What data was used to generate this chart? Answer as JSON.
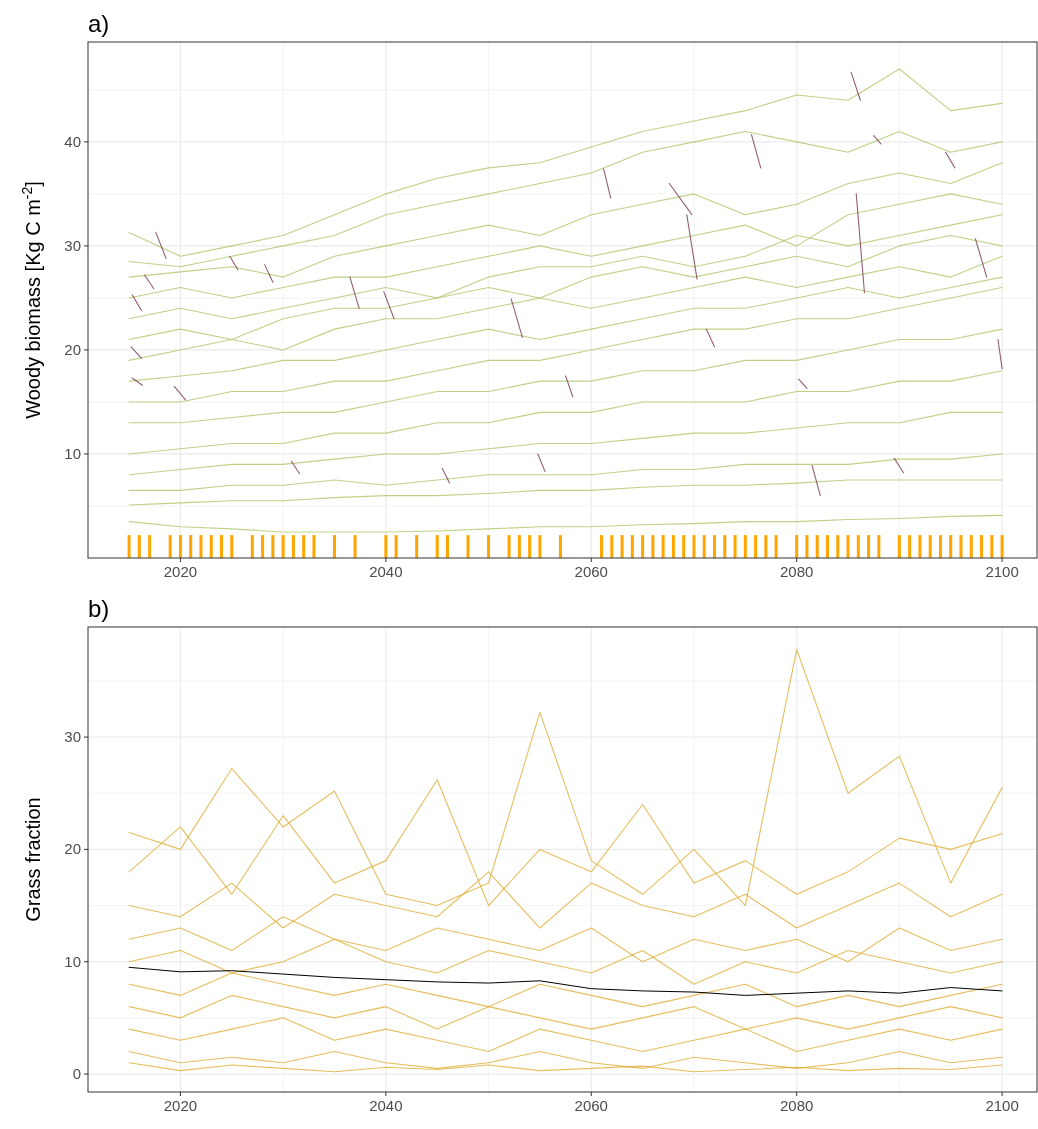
{
  "chart_data": [
    {
      "type": "line",
      "title": "a)",
      "ylabel": "Woody  biomass  [Kg C m$^{-2}$]",
      "grid": true,
      "xlim": [
        2011,
        2103.4
      ],
      "ylim": [
        0,
        49.6
      ],
      "xticks": [
        2020,
        {
          "value": 2030,
          "label": null
        },
        2040,
        {
          "value": 2050,
          "label": null
        },
        2060,
        {
          "value": 2070,
          "label": null
        },
        2080,
        {
          "value": 2090,
          "label": null
        },
        2100
      ],
      "yticks": [
        {
          "value": 5,
          "label": null
        },
        10,
        {
          "value": 15,
          "label": null
        },
        20,
        {
          "value": 25,
          "label": null
        },
        30,
        {
          "value": 35,
          "label": null
        },
        40,
        {
          "value": 45,
          "label": null
        }
      ],
      "x": [
        2015,
        2020,
        2025,
        2030,
        2035,
        2040,
        2045,
        2050,
        2055,
        2060,
        2065,
        2070,
        2075,
        2080,
        2085,
        2090,
        2095,
        2100
      ],
      "series": [
        {
          "color": "#a9c15f",
          "values": [
            31.3,
            29,
            30,
            31,
            33,
            35,
            36.5,
            37.5,
            38,
            39.5,
            41,
            42,
            43,
            44.5,
            44,
            47,
            43,
            43.7
          ]
        },
        {
          "color": "#a9c15f",
          "values": [
            28.5,
            28,
            29,
            30,
            31,
            33,
            34,
            35,
            36,
            37,
            39,
            40,
            41,
            40,
            39,
            41,
            39,
            40
          ]
        },
        {
          "color": "#a9c15f",
          "values": [
            27,
            27.5,
            28,
            27,
            29,
            30,
            31,
            32,
            31,
            33,
            34,
            35,
            33,
            34,
            36,
            37,
            36,
            38
          ]
        },
        {
          "color": "#a9c15f",
          "values": [
            25,
            26,
            25,
            26,
            27,
            27,
            28,
            29,
            30,
            29,
            30,
            31,
            32,
            30,
            33,
            34,
            35,
            34
          ]
        },
        {
          "color": "#a9c15f",
          "values": [
            23,
            24,
            23,
            24,
            25,
            26,
            25,
            27,
            28,
            28,
            29,
            28,
            29,
            31,
            30,
            31,
            32,
            33
          ]
        },
        {
          "color": "#a9c15f",
          "values": [
            21,
            22,
            21,
            23,
            24,
            24,
            25,
            26,
            25,
            27,
            28,
            27,
            28,
            29,
            28,
            30,
            31,
            30
          ]
        },
        {
          "color": "#a9c15f",
          "values": [
            19,
            20,
            21,
            20,
            22,
            23,
            23,
            24,
            25,
            24,
            25,
            26,
            27,
            26,
            27,
            28,
            27,
            29
          ]
        },
        {
          "color": "#a9c15f",
          "values": [
            17,
            17.5,
            18,
            19,
            19,
            20,
            21,
            22,
            21,
            22,
            23,
            24,
            24,
            25,
            26,
            25,
            26,
            27
          ]
        },
        {
          "color": "#a9c15f",
          "values": [
            15,
            15,
            16,
            16,
            17,
            17,
            18,
            19,
            19,
            20,
            21,
            22,
            22,
            23,
            23,
            24,
            25,
            26
          ]
        },
        {
          "color": "#a9c15f",
          "values": [
            13,
            13,
            13.5,
            14,
            14,
            15,
            16,
            16,
            17,
            17,
            18,
            18,
            19,
            19,
            20,
            21,
            21,
            22
          ]
        },
        {
          "color": "#a9c15f",
          "values": [
            10,
            10.5,
            11,
            11,
            12,
            12,
            13,
            13,
            14,
            14,
            15,
            15,
            15,
            16,
            16,
            17,
            17,
            18
          ]
        },
        {
          "color": "#a9c15f",
          "values": [
            8,
            8.5,
            9,
            9,
            9.5,
            10,
            10,
            10.5,
            11,
            11,
            11.5,
            12,
            12,
            12.5,
            13,
            13,
            14,
            14
          ]
        },
        {
          "color": "#a9c15f",
          "values": [
            6.5,
            6.5,
            7,
            7,
            7.5,
            7,
            7.5,
            8,
            8,
            8,
            8.5,
            8.5,
            9,
            9,
            9,
            9.5,
            9.5,
            10
          ]
        },
        {
          "color": "#a9c15f",
          "values": [
            5.1,
            5.3,
            5.5,
            5.5,
            5.8,
            6,
            6,
            6.2,
            6.5,
            6.5,
            6.8,
            7,
            7,
            7.2,
            7.5,
            7.5,
            7.5,
            7.5
          ]
        },
        {
          "color": "#a9c15f",
          "values": [
            3.5,
            3,
            2.8,
            2.5,
            2.5,
            2.5,
            2.6,
            2.8,
            3,
            3,
            3.2,
            3.3,
            3.5,
            3.5,
            3.7,
            3.8,
            4,
            4.1
          ]
        },
        {
          "color": "#6e2a45",
          "x": [
            2017.6,
            2018.6
          ],
          "values": [
            31.3,
            28.8
          ]
        },
        {
          "color": "#6e2a45",
          "x": [
            2015.3,
            2016.2
          ],
          "values": [
            25.3,
            23.8
          ]
        },
        {
          "color": "#6e2a45",
          "x": [
            2015.2,
            2016.2
          ],
          "values": [
            20.3,
            19.2
          ]
        },
        {
          "color": "#6e2a45",
          "x": [
            2015.3,
            2016.3
          ],
          "values": [
            17.3,
            16.6
          ]
        },
        {
          "color": "#6e2a45",
          "x": [
            2016.5,
            2017.4
          ],
          "values": [
            27.2,
            25.9
          ]
        },
        {
          "color": "#6e2a45",
          "x": [
            2019.4,
            2020.5
          ],
          "values": [
            16.5,
            15.2
          ]
        },
        {
          "color": "#6e2a45",
          "x": [
            2024.8,
            2025.6
          ],
          "values": [
            29,
            27.7
          ]
        },
        {
          "color": "#6e2a45",
          "x": [
            2028.2,
            2029
          ],
          "values": [
            28.2,
            26.5
          ]
        },
        {
          "color": "#6e2a45",
          "x": [
            2030.8,
            2031.6
          ],
          "values": [
            9.3,
            8.1
          ]
        },
        {
          "color": "#6e2a45",
          "x": [
            2036.5,
            2037.4
          ],
          "values": [
            27,
            24
          ]
        },
        {
          "color": "#6e2a45",
          "x": [
            2039.8,
            2040.8
          ],
          "values": [
            25.6,
            23
          ]
        },
        {
          "color": "#6e2a45",
          "x": [
            2045.5,
            2046.2
          ],
          "values": [
            8.6,
            7.2
          ]
        },
        {
          "color": "#6e2a45",
          "x": [
            2052.2,
            2053.3
          ],
          "values": [
            24.9,
            21.2
          ]
        },
        {
          "color": "#6e2a45",
          "x": [
            2054.8,
            2055.5
          ],
          "values": [
            10,
            8.3
          ]
        },
        {
          "color": "#6e2a45",
          "x": [
            2057.5,
            2058.2
          ],
          "values": [
            17.5,
            15.5
          ]
        },
        {
          "color": "#6e2a45",
          "x": [
            2061.2,
            2061.9
          ],
          "values": [
            37.4,
            34.6
          ]
        },
        {
          "color": "#6e2a45",
          "x": [
            2067.6,
            2069.8
          ],
          "values": [
            36,
            33
          ]
        },
        {
          "color": "#6e2a45",
          "x": [
            2069.3,
            2070.3
          ],
          "values": [
            33,
            26.8
          ]
        },
        {
          "color": "#6e2a45",
          "x": [
            2071.2,
            2072
          ],
          "values": [
            22,
            20.3
          ]
        },
        {
          "color": "#6e2a45",
          "x": [
            2075.6,
            2076.5
          ],
          "values": [
            40.7,
            37.5
          ]
        },
        {
          "color": "#6e2a45",
          "x": [
            2080.2,
            2081
          ],
          "values": [
            17.2,
            16.3
          ]
        },
        {
          "color": "#6e2a45",
          "x": [
            2081.5,
            2082.3
          ],
          "values": [
            8.9,
            6
          ]
        },
        {
          "color": "#6e2a45",
          "x": [
            2085.3,
            2086.2
          ],
          "values": [
            46.7,
            44
          ]
        },
        {
          "color": "#6e2a45",
          "x": [
            2085.8,
            2086.6
          ],
          "values": [
            35,
            25.5
          ]
        },
        {
          "color": "#6e2a45",
          "x": [
            2087.5,
            2088.2
          ],
          "values": [
            40.6,
            39.8
          ]
        },
        {
          "color": "#6e2a45",
          "x": [
            2089.5,
            2090.4
          ],
          "values": [
            9.6,
            8.2
          ]
        },
        {
          "color": "#6e2a45",
          "x": [
            2094.5,
            2095.4
          ],
          "values": [
            39,
            37.5
          ]
        },
        {
          "color": "#6e2a45",
          "x": [
            2097.4,
            2098.5
          ],
          "values": [
            30.7,
            27
          ]
        },
        {
          "color": "#6e2a45",
          "x": [
            2099.6,
            2100
          ],
          "values": [
            21,
            18.2
          ]
        },
        {
          "type": "bar",
          "color": "#ffa500",
          "x": [
            2015,
            2016,
            2017,
            2019,
            2020,
            2021,
            2022,
            2023,
            2024,
            2025,
            2027,
            2028,
            2029,
            2030,
            2031,
            2032,
            2033,
            2035,
            2037,
            2040,
            2041,
            2043,
            2045,
            2046,
            2048,
            2050,
            2052,
            2053,
            2054,
            2055,
            2057,
            2061,
            2062,
            2063,
            2064,
            2065,
            2066,
            2067,
            2068,
            2069,
            2070,
            2071,
            2072,
            2073,
            2074,
            2075,
            2076,
            2077,
            2078,
            2080,
            2081,
            2082,
            2083,
            2084,
            2085,
            2086,
            2087,
            2088,
            2090,
            2091,
            2092,
            2093,
            2094,
            2095,
            2096,
            2097,
            2098,
            2099,
            2100
          ],
          "values": [
            2.2,
            2.2,
            2.2,
            2.2,
            2.2,
            2.2,
            2.2,
            2.2,
            2.2,
            2.2,
            2.2,
            2.2,
            2.2,
            2.2,
            2.2,
            2.2,
            2.2,
            2.2,
            2.2,
            2.2,
            2.2,
            2.2,
            2.2,
            2.2,
            2.2,
            2.2,
            2.2,
            2.2,
            2.2,
            2.2,
            2.2,
            2.2,
            2.2,
            2.2,
            2.2,
            2.2,
            2.2,
            2.2,
            2.2,
            2.2,
            2.2,
            2.2,
            2.2,
            2.2,
            2.2,
            2.2,
            2.2,
            2.2,
            2.2,
            2.2,
            2.2,
            2.2,
            2.2,
            2.2,
            2.2,
            2.2,
            2.2,
            2.2,
            2.2,
            2.2,
            2.2,
            2.2,
            2.2,
            2.2,
            2.2,
            2.2,
            2.2,
            2.2,
            2.2
          ]
        }
      ]
    },
    {
      "type": "line",
      "title": "b)",
      "ylabel": "Grass fraction",
      "grid": true,
      "xlim": [
        2011,
        2103.4
      ],
      "ylim": [
        -1.6,
        39.8
      ],
      "xticks": [
        2020,
        {
          "value": 2030,
          "label": null
        },
        2040,
        {
          "value": 2050,
          "label": null
        },
        2060,
        {
          "value": 2070,
          "label": null
        },
        2080,
        {
          "value": 2090,
          "label": null
        },
        2100
      ],
      "yticks": [
        0,
        {
          "value": 5,
          "label": null
        },
        10,
        {
          "value": 15,
          "label": null
        },
        20,
        {
          "value": 25,
          "label": null
        },
        30,
        {
          "value": 35,
          "label": null
        }
      ],
      "x": [
        2015,
        2020,
        2025,
        2030,
        2035,
        2040,
        2045,
        2050,
        2055,
        2060,
        2065,
        2070,
        2075,
        2080,
        2085,
        2090,
        2095,
        2100
      ],
      "series": [
        {
          "color": "#dcaa2a",
          "values": [
            21.5,
            20,
            27.2,
            22,
            25.2,
            16,
            15,
            17,
            32.2,
            19,
            16,
            20,
            15,
            37.8,
            25,
            28.3,
            17,
            25.5
          ]
        },
        {
          "color": "#dcaa2a",
          "values": [
            18,
            22,
            16,
            23,
            17,
            19,
            26.2,
            15,
            20,
            18,
            24,
            17,
            19,
            16,
            18,
            21,
            20,
            21.4
          ]
        },
        {
          "color": "#dcaa2a",
          "values": [
            15,
            14,
            17,
            13,
            16,
            15,
            14,
            18,
            13,
            17,
            15,
            14,
            16,
            13,
            15,
            17,
            14,
            16
          ]
        },
        {
          "color": "#dcaa2a",
          "values": [
            12,
            13,
            11,
            14,
            12,
            11,
            13,
            12,
            11,
            13,
            10,
            12,
            11,
            12,
            10,
            13,
            11,
            12
          ]
        },
        {
          "color": "#dcaa2a",
          "values": [
            10,
            11,
            9,
            10,
            12,
            10,
            9,
            11,
            10,
            9,
            11,
            8,
            10,
            9,
            11,
            10,
            9,
            10
          ]
        },
        {
          "color": "#dcaa2a",
          "values": [
            8,
            7,
            9,
            8,
            7,
            8,
            7,
            6,
            8,
            7,
            6,
            7,
            8,
            6,
            7,
            6,
            7,
            8
          ]
        },
        {
          "color": "#dcaa2a",
          "values": [
            6,
            5,
            7,
            6,
            5,
            6,
            4,
            6,
            5,
            4,
            5,
            6,
            4,
            5,
            4,
            5,
            6,
            5
          ]
        },
        {
          "color": "#dcaa2a",
          "values": [
            4,
            3,
            4,
            5,
            3,
            4,
            3,
            2,
            4,
            3,
            2,
            3,
            4,
            2,
            3,
            4,
            3,
            4
          ]
        },
        {
          "color": "#dcaa2a",
          "values": [
            2,
            1,
            1.5,
            1,
            2,
            1,
            0.5,
            1,
            2,
            1,
            0.5,
            1.5,
            1,
            0.5,
            1,
            2,
            1,
            1.5
          ]
        },
        {
          "color": "#dcaa2a",
          "values": [
            1,
            0.3,
            0.8,
            0.5,
            0.2,
            0.6,
            0.4,
            0.8,
            0.3,
            0.5,
            0.7,
            0.2,
            0.4,
            0.6,
            0.3,
            0.5,
            0.4,
            0.8
          ]
        },
        {
          "color": "#000000",
          "values": [
            9.5,
            9.1,
            9.2,
            8.9,
            8.6,
            8.4,
            8.2,
            8.1,
            8.3,
            7.6,
            7.4,
            7.3,
            7.0,
            7.2,
            7.4,
            7.2,
            7.7,
            7.4
          ]
        }
      ]
    }
  ]
}
